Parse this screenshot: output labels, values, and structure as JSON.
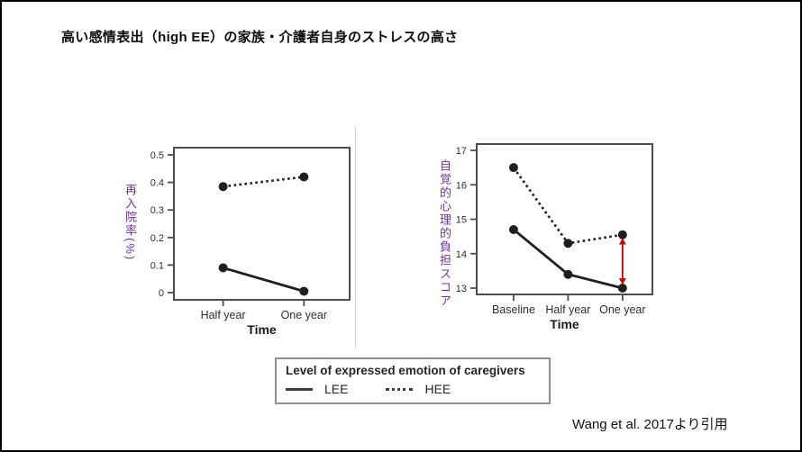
{
  "title": "高い感情表出（high EE）の家族・介護者自身のストレスの高さ",
  "citation": "Wang et al. 2017より引用",
  "legend": {
    "title": "Level of expressed emotion of caregivers",
    "items": [
      {
        "label": "LEE",
        "line_style": "solid"
      },
      {
        "label": "HEE",
        "line_style": "dashed"
      }
    ]
  },
  "colors": {
    "axis_label_purple": "#7030A0",
    "line": "#1f1f1f",
    "frame": "#4d4d4d",
    "tick_text": "#2e2e2e",
    "arrow_red": "#cc0000"
  },
  "chart_data": [
    {
      "type": "line",
      "panel": "left",
      "ylabel": "再入院率(%)",
      "xlabel": "Time",
      "categories": [
        "Half year",
        "One year"
      ],
      "yticks": [
        0,
        0.1,
        0.2,
        0.3,
        0.4,
        0.5
      ],
      "ylim": [
        0,
        0.5
      ],
      "grid": false,
      "series": [
        {
          "name": "LEE",
          "line_style": "solid",
          "values": [
            0.09,
            0.005
          ]
        },
        {
          "name": "HEE",
          "line_style": "dashed",
          "values": [
            0.385,
            0.42
          ]
        }
      ],
      "layout": {
        "cat_positions": [
          0.28,
          0.74
        ]
      }
    },
    {
      "type": "line",
      "panel": "right",
      "ylabel": "自覚的心理的負担スコア",
      "xlabel": "Time",
      "categories": [
        "Baseline",
        "Half year",
        "One year"
      ],
      "yticks": [
        13,
        14,
        15,
        16,
        17
      ],
      "ylim": [
        13,
        17
      ],
      "grid": false,
      "series": [
        {
          "name": "LEE",
          "line_style": "solid",
          "values": [
            14.7,
            13.4,
            13.0
          ]
        },
        {
          "name": "HEE",
          "line_style": "dashed",
          "values": [
            16.5,
            14.3,
            14.55
          ]
        }
      ],
      "annotation": {
        "type": "double-arrow",
        "category_index": 2,
        "from": 14.45,
        "to": 13.1,
        "color": "#cc0000"
      },
      "layout": {
        "cat_positions": [
          0.21,
          0.52,
          0.83
        ]
      }
    }
  ]
}
